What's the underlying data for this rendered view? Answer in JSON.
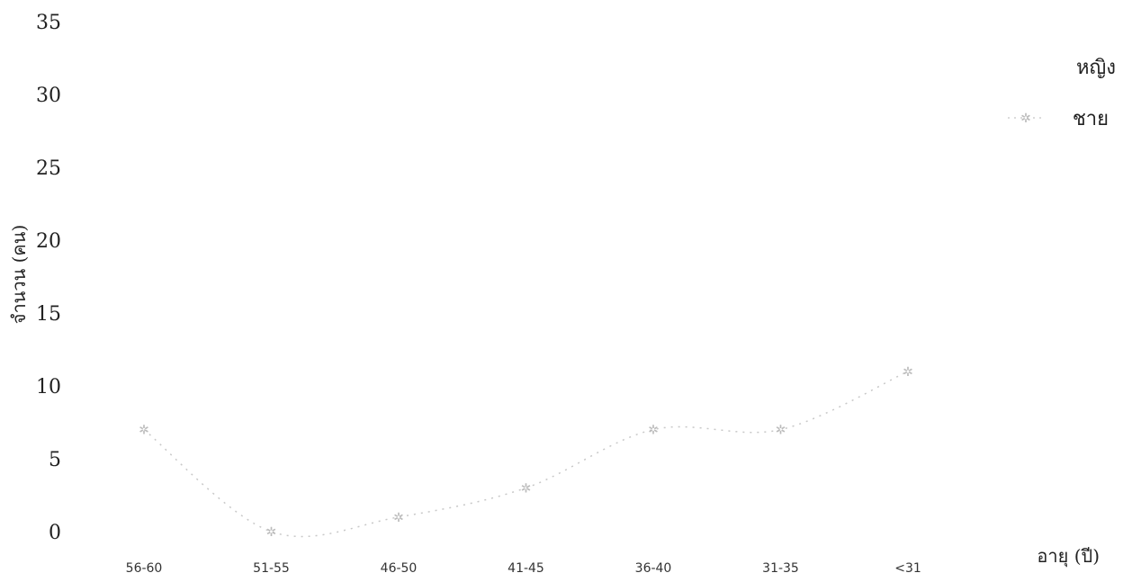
{
  "chart_data": {
    "type": "line",
    "title": "",
    "xlabel": "อายุ (ปี)",
    "ylabel": "จำนวน (คน)",
    "ylim": [
      0,
      35
    ],
    "yticks": [
      0,
      5,
      10,
      15,
      20,
      25,
      30,
      35
    ],
    "grid": false,
    "legend_position": "top-right",
    "categories": [
      "56-60",
      "51-55",
      "46-50",
      "41-45",
      "36-40",
      "31-35",
      "<31"
    ],
    "series": [
      {
        "name": "หญิง",
        "values": [
          null,
          null,
          null,
          null,
          null,
          null,
          null
        ],
        "color": "#ffffff"
      },
      {
        "name": "ชาย",
        "values": [
          7,
          0,
          1,
          3,
          7,
          7,
          11
        ],
        "color": "#c8c8c8"
      }
    ]
  }
}
